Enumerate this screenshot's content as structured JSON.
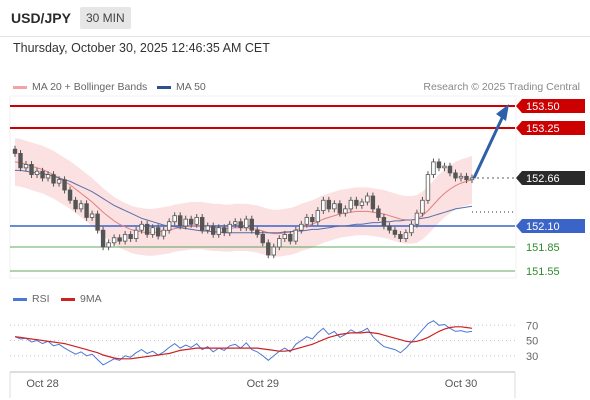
{
  "header": {
    "symbol": "USD/JPY",
    "timeframe": "30 MIN"
  },
  "datetime": "Thursday, October 30, 2025 12:46:35 AM CET",
  "legend": {
    "ma_bb": "MA 20 + Bollinger Bands",
    "ma50": "MA 50",
    "rsi": "RSI",
    "ma9": "9MA"
  },
  "credit": "Research © 2025 Trading Central",
  "colors": {
    "resistance": "#cc0000",
    "support": "#2e8b2e",
    "pivot": "#3a64c8",
    "candle": "#555555",
    "bb_fill": "#f7c9c9",
    "ma20": "#e27f7f",
    "ma50": "#5a6fa8",
    "rsi": "#4a78d4",
    "ma9": "#cc2222",
    "arrow": "#2f5fa8",
    "last_price": "#2a2a2a"
  },
  "chart_data": [
    {
      "type": "candlestick",
      "x_ticks": [
        "Oct 28",
        "Oct 29",
        "Oct 30"
      ],
      "price_range": [
        151.4,
        153.6
      ],
      "levels": [
        {
          "label": "153.50",
          "value": 153.5,
          "kind": "resistance"
        },
        {
          "label": "153.25",
          "value": 153.25,
          "kind": "resistance"
        },
        {
          "label": "152.66",
          "value": 152.66,
          "kind": "last_price"
        },
        {
          "label": "152.10",
          "value": 152.1,
          "kind": "pivot"
        },
        {
          "label": "151.85",
          "value": 151.85,
          "kind": "support"
        },
        {
          "label": "151.55",
          "value": 151.55,
          "kind": "support"
        }
      ],
      "closes": [
        152.95,
        152.78,
        152.82,
        152.7,
        152.74,
        152.66,
        152.7,
        152.6,
        152.64,
        152.52,
        152.4,
        152.3,
        152.36,
        152.2,
        152.24,
        152.05,
        151.85,
        151.9,
        151.96,
        151.92,
        152.0,
        151.95,
        152.05,
        152.12,
        152.0,
        152.08,
        151.98,
        152.05,
        152.15,
        152.22,
        152.1,
        152.18,
        152.12,
        152.2,
        152.05,
        152.1,
        152.0,
        152.08,
        152.02,
        152.12,
        152.15,
        152.08,
        152.18,
        152.05,
        152.0,
        151.9,
        151.75,
        151.85,
        151.95,
        152.0,
        151.92,
        152.05,
        152.12,
        152.2,
        152.15,
        152.28,
        152.4,
        152.3,
        152.36,
        152.25,
        152.3,
        152.4,
        152.34,
        152.38,
        152.45,
        152.3,
        152.2,
        152.1,
        152.05,
        152.0,
        151.95,
        152.02,
        152.12,
        152.25,
        152.4,
        152.7,
        152.85,
        152.78,
        152.8,
        152.72,
        152.66,
        152.68,
        152.64,
        152.66
      ],
      "ma20": [
        152.85,
        152.84,
        152.82,
        152.8,
        152.78,
        152.76,
        152.73,
        152.7,
        152.66,
        152.62,
        152.58,
        152.53,
        152.48,
        152.43,
        152.38,
        152.32,
        152.26,
        152.21,
        152.16,
        152.12,
        152.09,
        152.06,
        152.04,
        152.03,
        152.02,
        152.02,
        152.03,
        152.04,
        152.05,
        152.07,
        152.08,
        152.09,
        152.1,
        152.1,
        152.1,
        152.09,
        152.08,
        152.08,
        152.07,
        152.07,
        152.08,
        152.08,
        152.08,
        152.07,
        152.06,
        152.04,
        152.02,
        152.01,
        152.01,
        152.02,
        152.03,
        152.05,
        152.08,
        152.1,
        152.12,
        152.15,
        152.18,
        152.2,
        152.22,
        152.24,
        152.25,
        152.26,
        152.27,
        152.27,
        152.27,
        152.26,
        152.25,
        152.24,
        152.22,
        152.2,
        152.18,
        152.17,
        152.17,
        152.18,
        152.22,
        152.28,
        152.35,
        152.42,
        152.48,
        152.53,
        152.57,
        152.6,
        152.62,
        152.64
      ],
      "ma50": [
        152.75,
        152.75,
        152.74,
        152.73,
        152.72,
        152.71,
        152.7,
        152.68,
        152.66,
        152.64,
        152.62,
        152.59,
        152.56,
        152.53,
        152.5,
        152.46,
        152.42,
        152.38,
        152.34,
        152.31,
        152.28,
        152.25,
        152.22,
        152.19,
        152.17,
        152.15,
        152.13,
        152.11,
        152.1,
        152.09,
        152.08,
        152.07,
        152.06,
        152.05,
        152.04,
        152.04,
        152.03,
        152.03,
        152.02,
        152.02,
        152.02,
        152.02,
        152.02,
        152.02,
        152.02,
        152.02,
        152.02,
        152.02,
        152.02,
        152.03,
        152.03,
        152.04,
        152.04,
        152.05,
        152.06,
        152.06,
        152.07,
        152.08,
        152.09,
        152.1,
        152.1,
        152.11,
        152.12,
        152.12,
        152.13,
        152.14,
        152.14,
        152.15,
        152.15,
        152.16,
        152.16,
        152.17,
        152.17,
        152.18,
        152.19,
        152.2,
        152.22,
        152.24,
        152.26,
        152.28,
        152.3,
        152.31,
        152.32,
        152.33
      ]
    },
    {
      "type": "line",
      "name": "RSI",
      "y_ticks": [
        70,
        50,
        30
      ],
      "y_range": [
        10,
        90
      ],
      "rsi": [
        55,
        52,
        53,
        48,
        50,
        46,
        49,
        43,
        45,
        40,
        36,
        32,
        35,
        30,
        32,
        25,
        18,
        22,
        26,
        24,
        30,
        28,
        34,
        38,
        33,
        36,
        31,
        35,
        41,
        46,
        40,
        44,
        41,
        46,
        38,
        42,
        35,
        40,
        37,
        43,
        45,
        40,
        47,
        38,
        35,
        30,
        24,
        30,
        36,
        40,
        35,
        45,
        50,
        55,
        52,
        60,
        66,
        58,
        62,
        54,
        58,
        64,
        60,
        62,
        66,
        55,
        48,
        42,
        40,
        38,
        34,
        40,
        48,
        56,
        64,
        72,
        76,
        70,
        71,
        66,
        62,
        63,
        61,
        62
      ],
      "ma9": [
        55,
        54,
        53,
        52,
        51,
        50,
        49,
        48,
        47,
        46,
        44,
        42,
        40,
        38,
        36,
        34,
        31,
        29,
        27,
        26,
        26,
        26,
        27,
        28,
        29,
        30,
        31,
        32,
        33,
        35,
        37,
        38,
        39,
        40,
        40,
        40,
        40,
        40,
        40,
        40,
        40,
        40,
        40,
        40,
        40,
        39,
        38,
        37,
        36,
        36,
        37,
        39,
        41,
        43,
        45,
        48,
        51,
        54,
        56,
        58,
        59,
        60,
        60,
        60,
        61,
        60,
        59,
        57,
        55,
        53,
        51,
        49,
        48,
        49,
        51,
        54,
        58,
        62,
        65,
        67,
        68,
        68,
        67,
        66
      ]
    }
  ]
}
